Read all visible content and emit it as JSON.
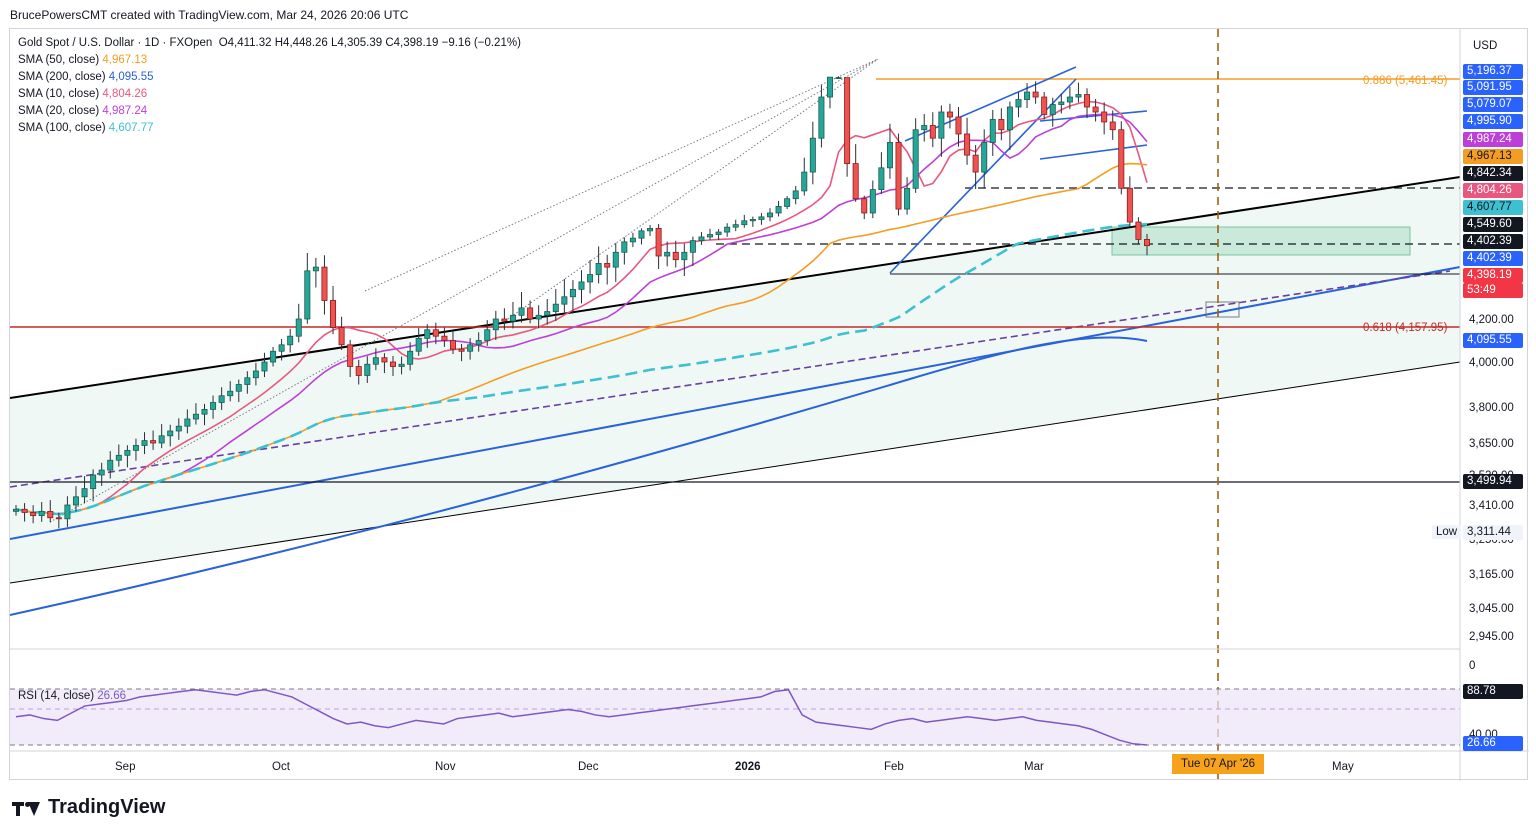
{
  "credit": "BrucePowersCMT created with TradingView.com, Mar 24, 2026 20:06 UTC",
  "legend": {
    "symbol": "Gold Spot / U.S. Dollar · 1D · FXOpen",
    "ohlc": "O4,411.32  H4,448.26  L4,305.39  C4,398.19  −9.16 (−0.21%)",
    "items": [
      {
        "label": "SMA (50, close)",
        "value": "4,967.13",
        "color": "#f59c23"
      },
      {
        "label": "SMA (200, close)",
        "value": "4,095.55",
        "color": "#2962d9"
      },
      {
        "label": "SMA (10, close)",
        "value": "4,804.26",
        "color": "#e9577f"
      },
      {
        "label": "SMA (20, close)",
        "value": "4,987.24",
        "color": "#bd3fd8"
      },
      {
        "label": "SMA (100, close)",
        "value": "4,607.77",
        "color": "#3fc0d0"
      }
    ]
  },
  "rsi_legend": {
    "label": "RSI (14, close)",
    "value": "26.66"
  },
  "currency": "USD",
  "low_label": "Low",
  "date_tag": "Tue 07 Apr '26",
  "brand": "TradingView",
  "price_tags": [
    {
      "text": "5,196.37",
      "bg": "#2962ff",
      "fg": "#ffffff",
      "price": 5196.37
    },
    {
      "text": "5,091.95",
      "bg": "#2962ff",
      "fg": "#ffffff",
      "price": 5091.95
    },
    {
      "text": "5,079.07",
      "bg": "#2962ff",
      "fg": "#ffffff",
      "price": 5079.07
    },
    {
      "text": "4,995.90",
      "bg": "#2962ff",
      "fg": "#ffffff",
      "price": 4995.9
    },
    {
      "text": "4,987.24",
      "bg": "#bd3fd8",
      "fg": "#ffffff",
      "price": 4987.24
    },
    {
      "text": "4,967.13",
      "bg": "#f59c23",
      "fg": "#131722",
      "price": 4967.13
    },
    {
      "text": "4,842.34",
      "bg": "#131722",
      "fg": "#ffffff",
      "price": 4842.34
    },
    {
      "text": "4,804.26",
      "bg": "#e9577f",
      "fg": "#ffffff",
      "price": 4804.26
    },
    {
      "text": "4,607.77",
      "bg": "#3fc0d0",
      "fg": "#131722",
      "price": 4607.77
    },
    {
      "text": "4,549.60",
      "bg": "#131722",
      "fg": "#ffffff",
      "price": 4549.6
    },
    {
      "text": "4,402.39",
      "bg": "#131722",
      "fg": "#ffffff",
      "price": 4402.39
    },
    {
      "text": "4,402.39",
      "bg": "#2962ff",
      "fg": "#ffffff",
      "price": 4402.39
    },
    {
      "text": "4,398.19",
      "bg": "#f23645",
      "fg": "#ffffff",
      "price": 4398.19
    },
    {
      "text": "53:49",
      "bg": "#f23645",
      "fg": "#ffffff",
      "price": 4398.19
    },
    {
      "text": "4,095.55",
      "bg": "#2962ff",
      "fg": "#ffffff",
      "price": 4095.55
    },
    {
      "text": "3,499.94",
      "bg": "#131722",
      "fg": "#ffffff",
      "price": 3499.94
    },
    {
      "text": "3,311.44",
      "bg": "#f0f3fa",
      "fg": "#131722",
      "price": 3311.44
    },
    {
      "text": "88.78",
      "bg": "#131722",
      "fg": "#ffffff",
      "price": 88.78
    },
    {
      "text": "26.66",
      "bg": "#2962ff",
      "fg": "#ffffff",
      "price": 26.66
    }
  ],
  "chart_data": {
    "type": "candlestick",
    "y_axis_ticks": [
      "4,200.00",
      "4,000.00",
      "3,800.00",
      "3,650.00",
      "3,520.00",
      "3,410.00",
      "3,250.00",
      "3,165.00",
      "3,045.00",
      "2,945.00"
    ],
    "rsi_axis_ticks": [
      "0",
      "40.00"
    ],
    "x_axis_ticks": [
      "Sep",
      "Oct",
      "Nov",
      "Dec",
      "2026",
      "Feb",
      "Mar",
      "May"
    ],
    "fib_levels": [
      {
        "label": "0.886 (5,461.45)",
        "price": 5461.45,
        "color": "#f59c23"
      },
      {
        "label": "0.618 (4,157.95)",
        "price": 4157.95,
        "color": "#c62828"
      }
    ],
    "horizontal_levels": [
      4842.34,
      4402.39,
      3499.94
    ],
    "last": {
      "open": 4411.32,
      "high": 4448.26,
      "low": 4305.39,
      "close": 4398.19
    },
    "closes": [
      3390,
      3375,
      3360,
      3380,
      3350,
      3345,
      3410,
      3440,
      3470,
      3520,
      3540,
      3580,
      3600,
      3620,
      3640,
      3660,
      3650,
      3680,
      3700,
      3720,
      3750,
      3770,
      3790,
      3820,
      3850,
      3870,
      3900,
      3930,
      3960,
      4000,
      4050,
      4080,
      4120,
      4200,
      4330,
      4340,
      4250,
      4160,
      4080,
      3980,
      3940,
      3990,
      4020,
      4000,
      3980,
      3990,
      4050,
      4110,
      4150,
      4120,
      4100,
      4060,
      4050,
      4080,
      4100,
      4150,
      4200,
      4190,
      4210,
      4230,
      4200,
      4210,
      4220,
      4240,
      4260,
      4280,
      4300,
      4320,
      4350,
      4340,
      4380,
      4420,
      4450,
      4510,
      4530,
      4370,
      4380,
      4360,
      4380,
      4430,
      4460,
      4480,
      4500,
      4540,
      4560,
      4590,
      4600,
      4620,
      4650,
      4700,
      4760,
      4820,
      4880,
      4960,
      5100,
      5380,
      5400,
      4900,
      4760,
      4650,
      4830,
      4890,
      4950,
      4680,
      4840,
      4980,
      4990,
      4960,
      5040,
      5020,
      4970,
      4920,
      4880,
      4950,
      5010,
      4980,
      5060,
      5090,
      5120,
      5100,
      5030,
      5070,
      5080,
      5100,
      5110,
      5060,
      5040,
      5000,
      4980,
      4840,
      4580,
      4440,
      4398
    ],
    "rsi": [
      58,
      60,
      56,
      54,
      62,
      70,
      72,
      74,
      76,
      80,
      82,
      84,
      86,
      88,
      86,
      84,
      82,
      86,
      88,
      84,
      80,
      72,
      64,
      56,
      50,
      52,
      48,
      46,
      50,
      54,
      52,
      50,
      56,
      58,
      60,
      62,
      58,
      60,
      62,
      64,
      66,
      64,
      60,
      58,
      60,
      62,
      64,
      66,
      68,
      70,
      72,
      74,
      76,
      78,
      80,
      86,
      88,
      60,
      52,
      50,
      48,
      46,
      44,
      50,
      54,
      56,
      52,
      54,
      56,
      58,
      56,
      54,
      56,
      58,
      54,
      52,
      50,
      48,
      44,
      38,
      32,
      28,
      26.66
    ]
  }
}
